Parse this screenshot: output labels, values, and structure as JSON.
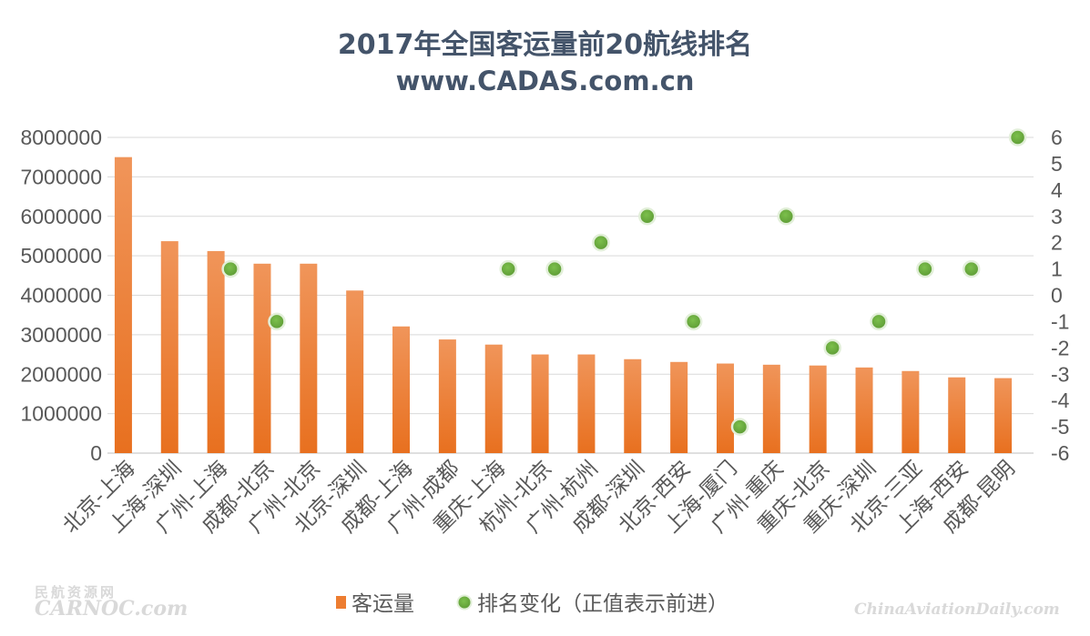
{
  "chart_data": {
    "type": "bar",
    "title": "2017年全国客运量前20航线排名",
    "subtitle": "www.CADAS.com.cn",
    "categories": [
      "北京-上海",
      "上海-深圳",
      "广州-上海",
      "成都-北京",
      "广州-北京",
      "北京-深圳",
      "成都-上海",
      "广州-成都",
      "重庆-上海",
      "杭州-北京",
      "广州-杭州",
      "成都-深圳",
      "北京-西安",
      "上海-厦门",
      "广州-重庆",
      "重庆-北京",
      "重庆-深圳",
      "北京-三亚",
      "上海-西安",
      "成都-昆明"
    ],
    "series": [
      {
        "name": "客运量",
        "type": "bar",
        "axis": "left",
        "color": "#ed7d31",
        "values": [
          7500000,
          5370000,
          5120000,
          4800000,
          4800000,
          4120000,
          3210000,
          2880000,
          2750000,
          2500000,
          2500000,
          2380000,
          2310000,
          2270000,
          2240000,
          2220000,
          2170000,
          2080000,
          1920000,
          1900000
        ]
      },
      {
        "name": "排名变化（正值表示前进）",
        "type": "scatter",
        "axis": "right",
        "color": "#70ad47",
        "values": [
          null,
          null,
          1,
          -1,
          null,
          null,
          null,
          null,
          1,
          1,
          2,
          3,
          -1,
          -5,
          3,
          -2,
          -1,
          1,
          1,
          6
        ]
      }
    ],
    "y_left": {
      "min": 0,
      "max": 8000000,
      "step": 1000000,
      "ticks": [
        "0",
        "1000000",
        "2000000",
        "3000000",
        "4000000",
        "5000000",
        "6000000",
        "7000000",
        "8000000"
      ]
    },
    "y_right": {
      "min": -6,
      "max": 6,
      "step": 1,
      "ticks": [
        "-6",
        "-5",
        "-4",
        "-3",
        "-2",
        "-1",
        "0",
        "1",
        "2",
        "3",
        "4",
        "5",
        "6"
      ]
    },
    "grid": true,
    "legend_position": "bottom"
  },
  "watermarks": {
    "left_top": "民航资源网",
    "left_bottom": "CARNOC.com",
    "right": "ChinaAviationDaily.com"
  }
}
